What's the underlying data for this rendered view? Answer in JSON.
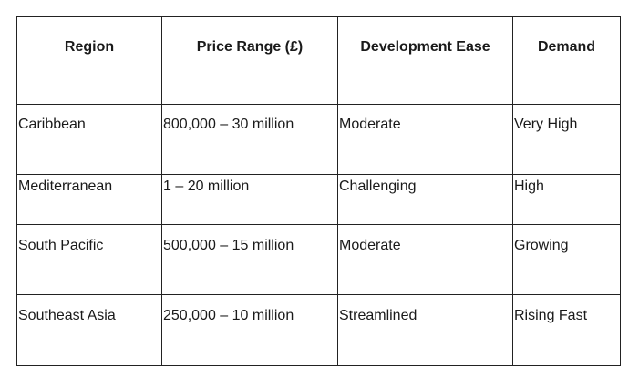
{
  "table": {
    "headers": [
      "Region",
      "Price Range (£)",
      "Development Ease",
      "Demand"
    ],
    "rows": [
      [
        "Caribbean",
        "800,000 – 30 million",
        "Moderate",
        "Very High"
      ],
      [
        "Mediterranean",
        "1 – 20 million",
        "Challenging",
        "High"
      ],
      [
        "South Pacific",
        "500,000 – 15 million",
        "Moderate",
        "Growing"
      ],
      [
        "Southeast Asia",
        "250,000 – 10 million",
        "Streamlined",
        "Rising Fast"
      ]
    ]
  }
}
